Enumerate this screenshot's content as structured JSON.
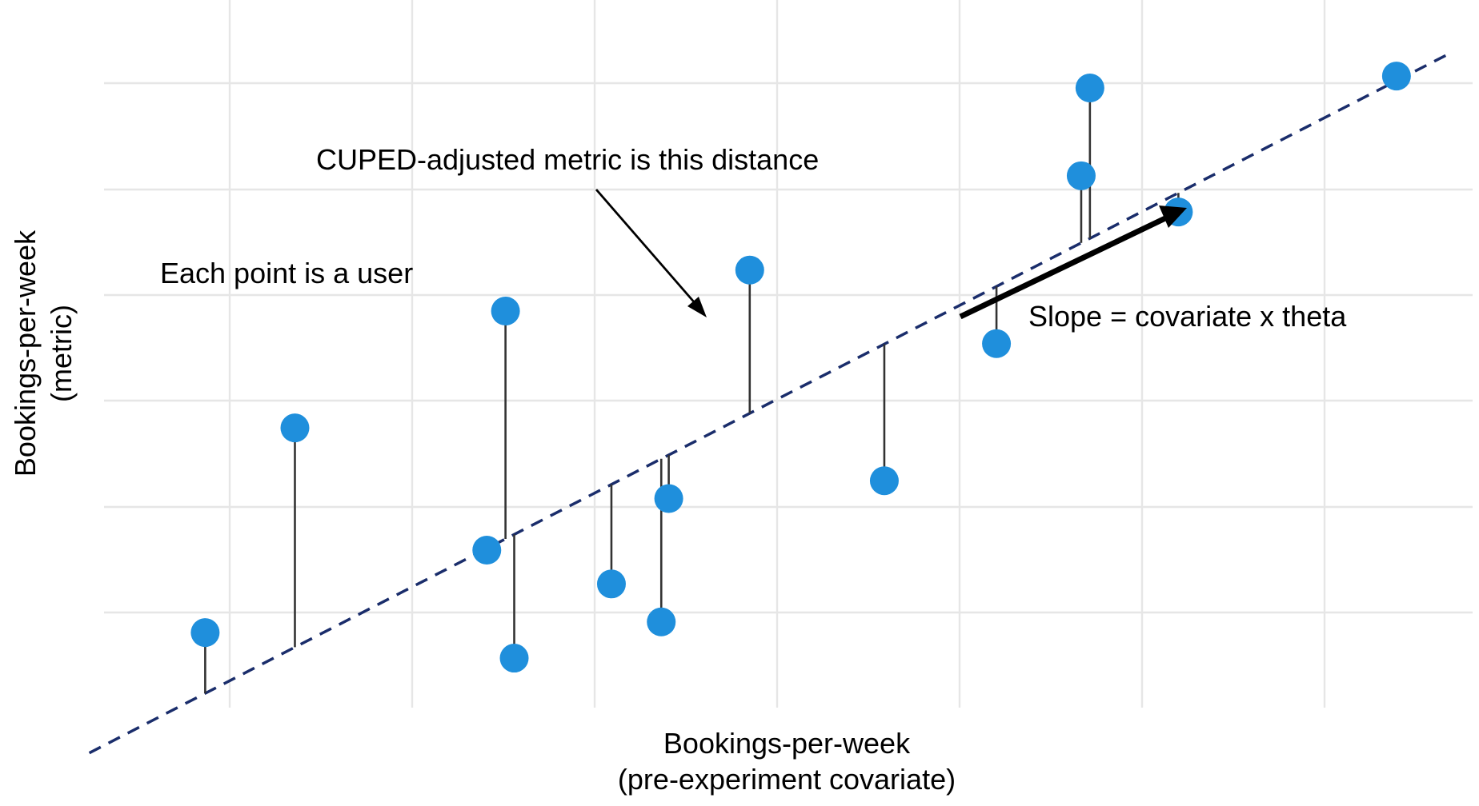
{
  "chart_data": {
    "type": "scatter",
    "title": "",
    "xlabel": [
      "Bookings-per-week",
      "(pre-experiment covariate)"
    ],
    "ylabel": [
      "Bookings-per-week",
      "(metric)"
    ],
    "x_tick_labels_shown": false,
    "y_tick_labels_shown": false,
    "grid": true,
    "xlim": [
      0,
      10
    ],
    "ylim": [
      0,
      10
    ],
    "points": [
      {
        "x": 0.33,
        "y": 0.82
      },
      {
        "x": 1.05,
        "y": 4.27
      },
      {
        "x": 2.59,
        "y": 2.21
      },
      {
        "x": 2.74,
        "y": 6.24
      },
      {
        "x": 2.81,
        "y": 0.39
      },
      {
        "x": 3.59,
        "y": 1.64
      },
      {
        "x": 3.99,
        "y": 1.0
      },
      {
        "x": 4.05,
        "y": 3.08
      },
      {
        "x": 4.7,
        "y": 6.93
      },
      {
        "x": 5.78,
        "y": 3.38
      },
      {
        "x": 6.68,
        "y": 5.69
      },
      {
        "x": 7.36,
        "y": 8.52
      },
      {
        "x": 7.43,
        "y": 10.0
      },
      {
        "x": 8.14,
        "y": 7.91
      },
      {
        "x": 9.89,
        "y": 10.2
      }
    ],
    "regression_line": {
      "intercept": -0.56,
      "slope": 1.08,
      "style": "dashed",
      "color": "#1a2d6b"
    },
    "residual_segments": true,
    "annotations": [
      {
        "text": "Each point is a user"
      },
      {
        "text": "CUPED-adjusted metric is this distance",
        "arrow": "thin"
      },
      {
        "text": "Slope = covariate x theta",
        "arrow": "thick"
      }
    ],
    "colors": {
      "points": "#1f8fdc",
      "line": "#1a2d6b",
      "residual": "#333333",
      "grid": "#e6e6e6"
    }
  }
}
